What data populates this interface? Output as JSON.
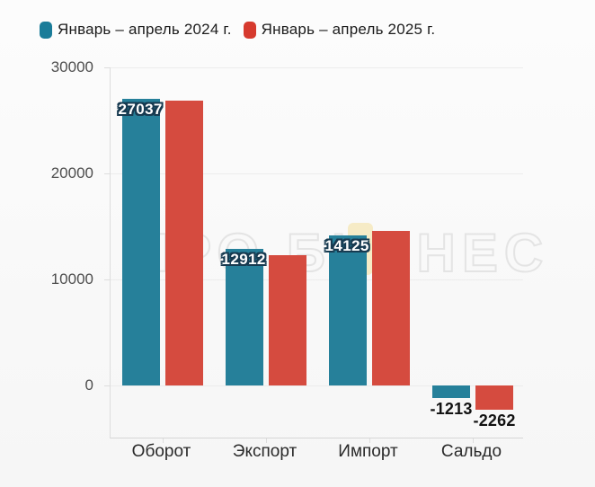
{
  "legend": {
    "items": [
      {
        "label": "Январь – апрель 2024 г.",
        "color": "#1a7c99"
      },
      {
        "label": "Январь – апрель 2025 г.",
        "color": "#d63a2e"
      }
    ]
  },
  "watermark": {
    "text": "ПРО БИЗНЕС"
  },
  "chart_data": {
    "type": "bar",
    "title": "",
    "xlabel": "",
    "ylabel": "",
    "categories": [
      "Оборот",
      "Экспорт",
      "Импорт",
      "Сальдо"
    ],
    "series": [
      {
        "name": "Январь – апрель 2024 г.",
        "color": "#26809a",
        "values": [
          27037,
          12912,
          14125,
          -1213
        ],
        "labels": [
          "27037",
          "12912",
          "14125",
          "-1213"
        ]
      },
      {
        "name": "Январь – апрель 2025 г.",
        "color": "#d54b3f",
        "values": [
          26840,
          12290,
          14550,
          -2262
        ],
        "labels": [
          null,
          null,
          null,
          "-2262"
        ]
      }
    ],
    "ylim": [
      -5000,
      30000
    ],
    "yticks": [
      0,
      10000,
      20000,
      30000
    ],
    "ytick_labels": [
      "0",
      "10000",
      "20000",
      "30000"
    ],
    "grid": true,
    "legend_position": "top-left"
  }
}
